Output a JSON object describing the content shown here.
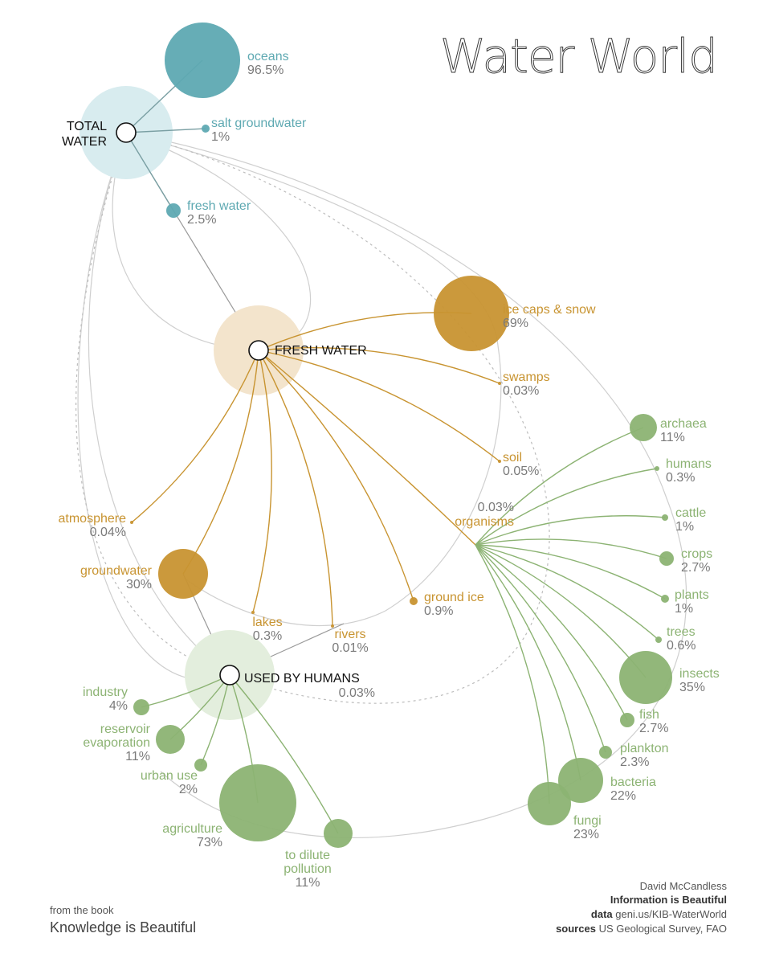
{
  "title": "Water World",
  "colors": {
    "blue": "#5ea9b2",
    "gold": "#c89431",
    "green": "#8cb373",
    "grey": "#c9c9c9"
  },
  "hubs": {
    "total": "TOTAL WATER",
    "fresh": "FRESH WATER",
    "human": "USED BY HUMANS",
    "human_value": "0.03%"
  },
  "total_water": [
    {
      "name": "oceans",
      "value": "96.5%"
    },
    {
      "name": "salt groundwater",
      "value": "1%"
    },
    {
      "name": "fresh water",
      "value": "2.5%"
    }
  ],
  "fresh_water": [
    {
      "name": "ice caps & snow",
      "value": "69%"
    },
    {
      "name": "swamps",
      "value": "0.03%"
    },
    {
      "name": "soil",
      "value": "0.05%"
    },
    {
      "name": "organisms",
      "value": "0.03%"
    },
    {
      "name": "ground ice",
      "value": "0.9%"
    },
    {
      "name": "rivers",
      "value": "0.01%"
    },
    {
      "name": "lakes",
      "value": "0.3%"
    },
    {
      "name": "groundwater",
      "value": "30%"
    },
    {
      "name": "atmosphere",
      "value": "0.04%"
    }
  ],
  "organisms": [
    {
      "name": "archaea",
      "value": "11%"
    },
    {
      "name": "humans",
      "value": "0.3%"
    },
    {
      "name": "cattle",
      "value": "1%"
    },
    {
      "name": "crops",
      "value": "2.7%"
    },
    {
      "name": "plants",
      "value": "1%"
    },
    {
      "name": "trees",
      "value": "0.6%"
    },
    {
      "name": "insects",
      "value": "35%"
    },
    {
      "name": "fish",
      "value": "2.7%"
    },
    {
      "name": "plankton",
      "value": "2.3%"
    },
    {
      "name": "bacteria",
      "value": "22%"
    },
    {
      "name": "fungi",
      "value": "23%"
    }
  ],
  "human_use": [
    {
      "name": "industry",
      "value": "4%"
    },
    {
      "name": "reservoir evaporation",
      "value": "11%"
    },
    {
      "name": "urban use",
      "value": "2%"
    },
    {
      "name": "agriculture",
      "value": "73%"
    },
    {
      "name": "to dilute pollution",
      "value": "11%"
    }
  ],
  "footer": {
    "from_book": "from the book",
    "book_title": "Knowledge is Beautiful",
    "author": "David McCandless",
    "publisher": "Information is Beautiful",
    "data_label": "data",
    "data_value": "geni.us/KIB-WaterWorld",
    "sources_label": "sources",
    "sources_value": "US Geological Survey, FAO"
  }
}
